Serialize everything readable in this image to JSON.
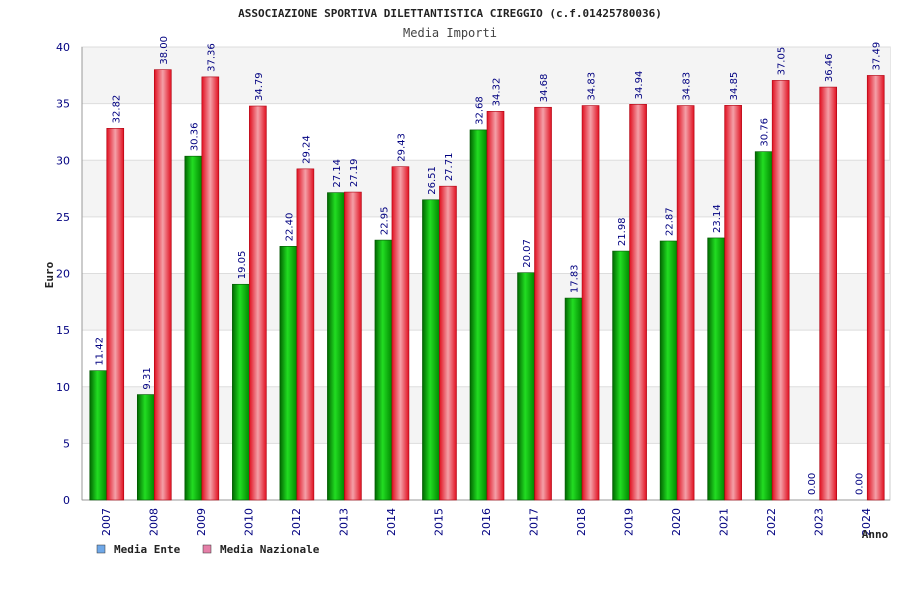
{
  "chart_data": {
    "type": "bar",
    "title": "ASSOCIAZIONE SPORTIVA DILETTANTISTICA CIREGGIO (c.f.01425780036)",
    "subtitle": "Media Importi",
    "xlabel": "Anno",
    "ylabel": "Euro",
    "ylim": [
      0,
      40
    ],
    "yticks": [
      "0",
      "5",
      "10",
      "15",
      "20",
      "25",
      "30",
      "35",
      "40"
    ],
    "grid": true,
    "legend_position": "bottom-left",
    "categories": [
      "2007",
      "2008",
      "2009",
      "2010",
      "2012",
      "2013",
      "2014",
      "2015",
      "2016",
      "2017",
      "2018",
      "2019",
      "2020",
      "2021",
      "2022",
      "2023",
      "2024"
    ],
    "series": [
      {
        "name": "Media Ente",
        "color": "#009900",
        "legend_color": "#6fa8e8",
        "values": [
          11.42,
          9.31,
          30.36,
          19.05,
          22.4,
          27.14,
          22.95,
          26.51,
          32.68,
          20.07,
          17.83,
          21.98,
          22.87,
          23.14,
          30.76,
          0.0,
          0.0
        ],
        "labels": [
          "11.42",
          "9.31",
          "30.36",
          "19.05",
          "22.40",
          "27.14",
          "22.95",
          "26.51",
          "32.68",
          "20.07",
          "17.83",
          "21.98",
          "22.87",
          "23.14",
          "30.76",
          "0.00",
          "0.00"
        ]
      },
      {
        "name": "Media Nazionale",
        "color": "#e8202c",
        "legend_color": "#e57fa8",
        "values": [
          32.82,
          38.0,
          37.36,
          34.79,
          29.24,
          27.19,
          29.43,
          27.71,
          34.32,
          34.68,
          34.83,
          34.94,
          34.83,
          34.85,
          37.05,
          36.46,
          37.49
        ],
        "labels": [
          "32.82",
          "38.00",
          "37.36",
          "34.79",
          "29.24",
          "27.19",
          "29.43",
          "27.71",
          "34.32",
          "34.68",
          "34.83",
          "34.94",
          "34.83",
          "34.85",
          "37.05",
          "36.46",
          "37.49"
        ]
      }
    ]
  }
}
